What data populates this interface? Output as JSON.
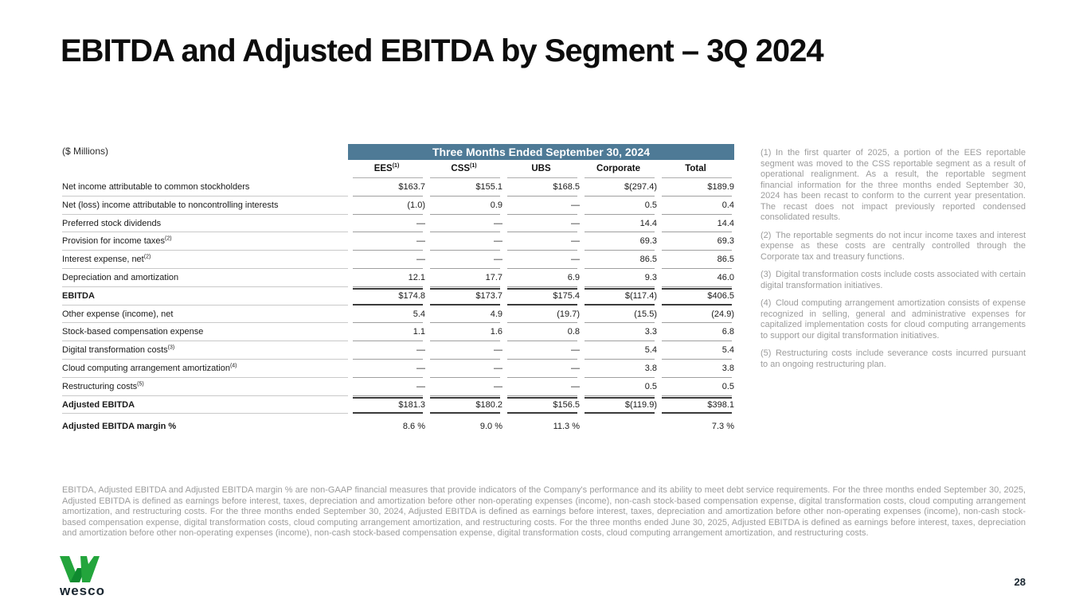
{
  "slide": {
    "title": "EBITDA and Adjusted EBITDA by Segment – 3Q 2024",
    "units_label": "($ Millions)",
    "page_number": "28"
  },
  "table": {
    "period_header": "Three Months Ended September 30, 2024",
    "columns": [
      {
        "label": "EES",
        "sup": "(1)"
      },
      {
        "label": "CSS",
        "sup": "(1)"
      },
      {
        "label": "UBS",
        "sup": ""
      },
      {
        "label": "Corporate",
        "sup": ""
      },
      {
        "label": "Total",
        "sup": ""
      }
    ],
    "rows": [
      {
        "label": "Net income attributable to common stockholders",
        "sup": "",
        "values": [
          "$163.7",
          "$155.1",
          "$168.5",
          "$(297.4)",
          "$189.9"
        ],
        "style": "normal"
      },
      {
        "label": "Net (loss) income attributable to noncontrolling interests",
        "sup": "",
        "values": [
          "(1.0)",
          "0.9",
          "—",
          "0.5",
          "0.4"
        ],
        "style": "normal"
      },
      {
        "label": "Preferred stock dividends",
        "sup": "",
        "values": [
          "—",
          "—",
          "—",
          "14.4",
          "14.4"
        ],
        "style": "normal"
      },
      {
        "label": "Provision for income taxes",
        "sup": "(2)",
        "values": [
          "—",
          "—",
          "—",
          "69.3",
          "69.3"
        ],
        "style": "normal"
      },
      {
        "label": "Interest expense, net",
        "sup": "(2)",
        "values": [
          "—",
          "—",
          "—",
          "86.5",
          "86.5"
        ],
        "style": "normal"
      },
      {
        "label": "Depreciation and amortization",
        "sup": "",
        "values": [
          "12.1",
          "17.7",
          "6.9",
          "9.3",
          "46.0"
        ],
        "style": "normal"
      },
      {
        "label": "EBITDA",
        "sup": "",
        "values": [
          "$174.8",
          "$173.7",
          "$175.4",
          "$(117.4)",
          "$406.5"
        ],
        "style": "total"
      },
      {
        "label": "Other expense (income), net",
        "sup": "",
        "values": [
          "5.4",
          "4.9",
          "(19.7)",
          "(15.5)",
          "(24.9)"
        ],
        "style": "normal"
      },
      {
        "label": "Stock-based compensation expense",
        "sup": "",
        "values": [
          "1.1",
          "1.6",
          "0.8",
          "3.3",
          "6.8"
        ],
        "style": "normal"
      },
      {
        "label": "Digital transformation costs",
        "sup": "(3)",
        "values": [
          "—",
          "—",
          "—",
          "5.4",
          "5.4"
        ],
        "style": "normal"
      },
      {
        "label": "Cloud computing arrangement amortization",
        "sup": "(4)",
        "values": [
          "—",
          "—",
          "—",
          "3.8",
          "3.8"
        ],
        "style": "normal"
      },
      {
        "label": "Restructuring costs",
        "sup": "(5)",
        "values": [
          "—",
          "—",
          "—",
          "0.5",
          "0.5"
        ],
        "style": "normal"
      },
      {
        "label": "Adjusted EBITDA",
        "sup": "",
        "values": [
          "$181.3",
          "$180.2",
          "$156.5",
          "$(119.9)",
          "$398.1"
        ],
        "style": "total"
      },
      {
        "label": "Adjusted EBITDA margin %",
        "sup": "",
        "values": [
          "8.6 %",
          "9.0 %",
          "11.3 %",
          "",
          "7.3 %"
        ],
        "style": "margin"
      }
    ]
  },
  "footnotes": [
    {
      "num": "(1)",
      "text": "In the first quarter of 2025, a portion of the EES reportable segment was moved to the CSS reportable segment as a result of operational realignment. As a result, the reportable segment financial information for the three months ended September 30, 2024 has been recast to conform to the current year presentation. The recast does not impact previously reported condensed consolidated results."
    },
    {
      "num": "(2)",
      "text": "The reportable segments do not incur income taxes and interest expense as these costs are centrally controlled through the Corporate tax and treasury functions."
    },
    {
      "num": "(3)",
      "text": "Digital transformation costs include costs associated with certain digital transformation initiatives."
    },
    {
      "num": "(4)",
      "text": "Cloud computing arrangement amortization consists of expense recognized in selling, general and administrative expenses for capitalized implementation costs for cloud computing arrangements to support our digital transformation initiatives."
    },
    {
      "num": "(5)",
      "text": "Restructuring costs include severance costs incurred pursuant to an ongoing restructuring plan."
    }
  ],
  "disclaimer": "EBITDA, Adjusted EBITDA and Adjusted EBITDA margin % are non-GAAP financial measures that provide indicators of the Company's performance and its ability to meet debt service requirements. For the three months ended September 30, 2025, Adjusted EBITDA is defined as earnings before interest, taxes, depreciation and amortization before other non-operating expenses (income), non-cash stock-based compensation expense, digital transformation costs, cloud computing arrangement amortization, and restructuring costs. For the three months ended September 30, 2024, Adjusted EBITDA is defined as earnings before interest, taxes, depreciation and amortization before other non-operating expenses (income), non-cash stock-based compensation expense, digital transformation costs, cloud computing arrangement amortization, and restructuring costs. For the three months ended June 30, 2025, Adjusted EBITDA is defined as earnings before interest, taxes, depreciation and amortization before other non-operating expenses (income), non-cash stock-based compensation expense, digital transformation costs, cloud computing arrangement amortization, and restructuring costs.",
  "logo": {
    "wordmark": "wesco"
  },
  "colors": {
    "header_band": "#4e7a96",
    "logo_green": "#23A53C",
    "logo_green_dark": "#0F8A2F",
    "navy": "#192630"
  }
}
